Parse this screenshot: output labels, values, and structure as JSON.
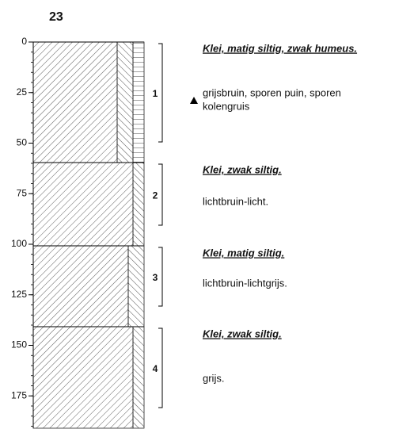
{
  "title": "23",
  "depth_axis": {
    "ticks": [
      0,
      25,
      50,
      75,
      100,
      125,
      150,
      175
    ]
  },
  "layers": [
    {
      "number": "1",
      "heading": "Klei, matig siltig, zwak humeus.",
      "description": [
        "grijsbruin, sporen puin, sporen",
        "kolengruis"
      ]
    },
    {
      "number": "2",
      "heading": "Klei, zwak siltig.",
      "description": [
        "lichtbruin-licht."
      ]
    },
    {
      "number": "3",
      "heading": "Klei, matig siltig.",
      "description": [
        "lichtbruin-lichtgrijs."
      ]
    },
    {
      "number": "4",
      "heading": "Klei, zwak siltig.",
      "description": [
        "grijs."
      ]
    }
  ]
}
